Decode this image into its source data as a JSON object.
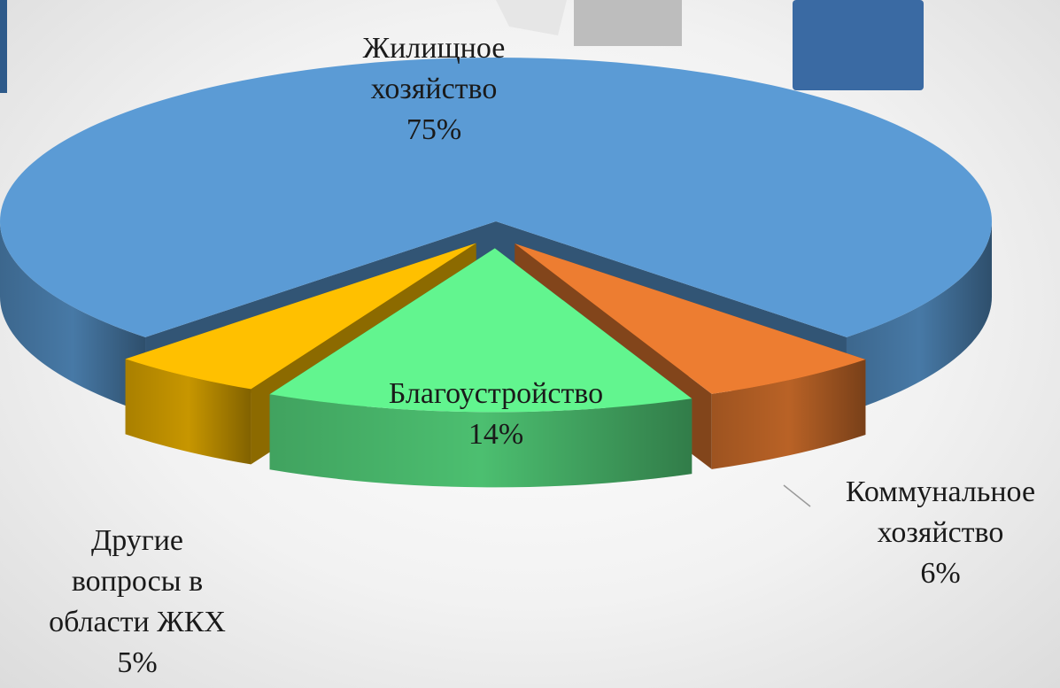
{
  "chart_data": {
    "type": "pie3d",
    "categories": [
      "Жилищное\nхозяйство",
      "Коммунальное\nхозяйство",
      "Благоустройство",
      "Другие\nвопросы в\nобласти ЖКХ"
    ],
    "values": [
      75,
      6,
      14,
      5
    ],
    "value_labels": [
      "75%",
      "6%",
      "14%",
      "5%"
    ],
    "colors": [
      "#5b9bd5",
      "#ed7d31",
      "#62f58f",
      "#ffc000"
    ]
  }
}
